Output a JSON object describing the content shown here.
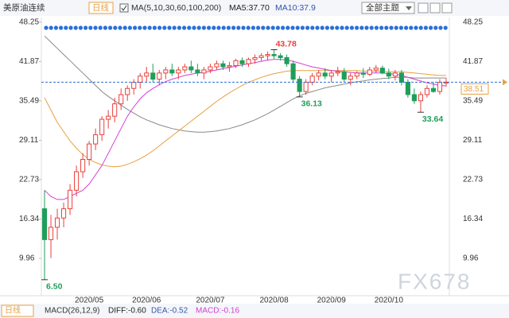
{
  "header": {
    "symbol": "美原油连续",
    "period": "日线",
    "ma_setting": "MA(5,10,30,60,100,200)",
    "ma5": "MA5:37.70",
    "ma10": "MA10:37.9",
    "theme": "全部主题"
  },
  "footer": {
    "period": "日线",
    "macd_setting": "MACD(26,12,9)",
    "diff": "DIFF:-0.60",
    "dea": "DEA:-0.52",
    "macd": "MACD:-0.16",
    "watermark": "FX678"
  },
  "chart_data": {
    "type": "candlestick",
    "categories": [
      null,
      null,
      null,
      null,
      null,
      null,
      null,
      "2020/05",
      null,
      null,
      null,
      null,
      null,
      null,
      null,
      null,
      "2020/06",
      null,
      null,
      null,
      null,
      null,
      null,
      null,
      null,
      null,
      "2020/07",
      null,
      null,
      null,
      null,
      null,
      null,
      null,
      null,
      null,
      "2020/08",
      null,
      null,
      null,
      null,
      null,
      null,
      null,
      null,
      "2020/09",
      null,
      null,
      null,
      null,
      null,
      null,
      null,
      null,
      "2020/10",
      null,
      null,
      null,
      null,
      null,
      null,
      null,
      null,
      null
    ],
    "open": [
      18,
      13,
      15,
      16.5,
      18,
      21,
      24,
      26,
      28.5,
      30,
      32.5,
      33,
      35,
      36.5,
      37.5,
      38.5,
      39.5,
      40,
      39,
      40,
      40.5,
      40,
      40.5,
      41,
      40.5,
      40,
      40.5,
      41,
      41.5,
      41,
      41.2,
      42,
      41.5,
      42.2,
      42.5,
      42.8,
      43,
      42.8,
      42.5,
      41.5,
      39,
      37,
      38.5,
      39.5,
      40,
      39.5,
      40,
      40.2,
      39,
      39.5,
      40,
      39.8,
      40.5,
      40.8,
      40,
      39.5,
      40,
      38.5,
      36.5,
      35.5,
      36.5,
      37.5,
      37,
      38.5
    ],
    "high": [
      21,
      17,
      18,
      19,
      22,
      25,
      27,
      29,
      31,
      33,
      34,
      36,
      37.5,
      38,
      39,
      40,
      41,
      41.5,
      40.5,
      41,
      41.5,
      41,
      41.5,
      42,
      41.5,
      41,
      41.5,
      42,
      42,
      41.8,
      42.3,
      42.5,
      42.5,
      43,
      43.2,
      43.5,
      43.78,
      43.2,
      43,
      42,
      39.5,
      39,
      40,
      40.5,
      40.8,
      40.5,
      41,
      40.8,
      40,
      40.3,
      40.8,
      41,
      41.3,
      41.2,
      40.7,
      40.5,
      40.5,
      39,
      37.5,
      37,
      38,
      38.5,
      39,
      39.2
    ],
    "low": [
      6.5,
      10,
      13,
      15,
      17,
      20,
      23,
      25,
      27.5,
      29,
      31,
      32,
      34,
      35.5,
      36.5,
      37.5,
      38.5,
      38.5,
      38,
      39,
      39.5,
      39,
      40,
      40,
      39.5,
      39,
      40,
      40.5,
      40.5,
      40.2,
      40.8,
      41,
      41,
      41.5,
      42,
      42,
      42.3,
      42,
      41,
      38.5,
      36.13,
      36.5,
      38,
      38.8,
      39,
      38.5,
      39.5,
      38.5,
      38,
      39,
      39.2,
      39.5,
      40,
      39.8,
      39,
      38.8,
      38,
      36,
      35,
      33.64,
      36,
      36.8,
      36.5,
      37.8
    ],
    "close": [
      13,
      15,
      16.5,
      18,
      21,
      24,
      26,
      28.5,
      30,
      32.5,
      33,
      35,
      36.5,
      37.5,
      38.5,
      39.5,
      40,
      39,
      40,
      40.5,
      40,
      40.5,
      41,
      40.5,
      40,
      40.5,
      41,
      41.5,
      41,
      41.2,
      42,
      41.5,
      42.2,
      42.5,
      42.8,
      43,
      42.8,
      42.5,
      41.5,
      39,
      37,
      38.5,
      39.5,
      40,
      39.5,
      40,
      40.2,
      39,
      39.5,
      40,
      39.8,
      40.5,
      40.8,
      40,
      39.5,
      40,
      38.5,
      36.5,
      35.5,
      36.5,
      37.5,
      37,
      38.5,
      38.51
    ],
    "up_color": "#e8413c",
    "down_color": "#1f9e5a",
    "series": [
      {
        "color": "#8a8a8a",
        "values": [
          46,
          45,
          44,
          43,
          42,
          41,
          40,
          39,
          38,
          37,
          36.2,
          35.5,
          34.8,
          34.1,
          33.5,
          32.9,
          32.4,
          32,
          31.6,
          31.3,
          31,
          30.8,
          30.6,
          30.5,
          30.4,
          30.4,
          30.5,
          30.6,
          30.8,
          31,
          31.3,
          31.6,
          32,
          32.4,
          32.9,
          33.4,
          34,
          34.6,
          35.2,
          35.8,
          36.3,
          36.7,
          37,
          37.3,
          37.6,
          37.8,
          38,
          38.2,
          38.4,
          38.6,
          38.7,
          38.9,
          39,
          39.1,
          39.2,
          39.3,
          39.3,
          39.3,
          39.2,
          39.2,
          39.2,
          39.2,
          39.2,
          39.2
        ]
      },
      {
        "color": "#e8a040",
        "values": [
          36,
          34,
          32,
          30.5,
          29,
          27.8,
          26.8,
          26,
          25.5,
          25.1,
          24.9,
          24.8,
          24.9,
          25.2,
          25.6,
          26.1,
          26.7,
          27.4,
          28.2,
          29,
          29.8,
          30.6,
          31.4,
          32.2,
          33,
          33.8,
          34.6,
          35.4,
          36.1,
          36.8,
          37.4,
          38,
          38.5,
          38.9,
          39.3,
          39.6,
          39.9,
          40.1,
          40.3,
          40.4,
          40.4,
          40.4,
          40.4,
          40.4,
          40.4,
          40.4,
          40.4,
          40.4,
          40.4,
          40.4,
          40.3,
          40.3,
          40.3,
          40.3,
          40.2,
          40.2,
          40.2,
          40.1,
          40,
          39.9,
          39.8,
          39.7,
          39.6,
          39.6
        ]
      },
      {
        "color": "#d23fd2",
        "values": [
          21,
          20,
          19.5,
          19.5,
          20,
          20.5,
          21,
          22,
          23.5,
          25,
          27,
          29,
          31,
          33,
          34.5,
          35.8,
          36.8,
          37.5,
          38.1,
          38.6,
          39,
          39.3,
          39.6,
          39.8,
          40,
          40.1,
          40.3,
          40.5,
          40.7,
          40.9,
          41.1,
          41.3,
          41.5,
          41.7,
          41.9,
          42.1,
          42.2,
          42.2,
          42.1,
          41.9,
          41.6,
          41.3,
          41,
          40.8,
          40.6,
          40.4,
          40.3,
          40.2,
          40.1,
          40,
          40,
          40,
          40,
          40,
          39.9,
          39.8,
          39.6,
          39.3,
          39,
          38.7,
          38.4,
          38.2,
          38,
          37.9
        ]
      }
    ],
    "annotations": [
      {
        "value": 43.78,
        "label": "43.78",
        "color": "#e8413c"
      },
      {
        "value": 36.13,
        "label": "36.13",
        "color": "#1f9e5a"
      },
      {
        "value": 33.64,
        "label": "33.64",
        "color": "#1f9e5a"
      },
      {
        "value": 6.5,
        "label": "6.50",
        "color": "#1f9e5a"
      }
    ],
    "last_price": 38.51,
    "ylim": [
      3.9,
      49.0
    ],
    "yticks": [
      48.25,
      41.87,
      35.49,
      29.11,
      22.73,
      16.34,
      9.96
    ],
    "grid": false
  }
}
